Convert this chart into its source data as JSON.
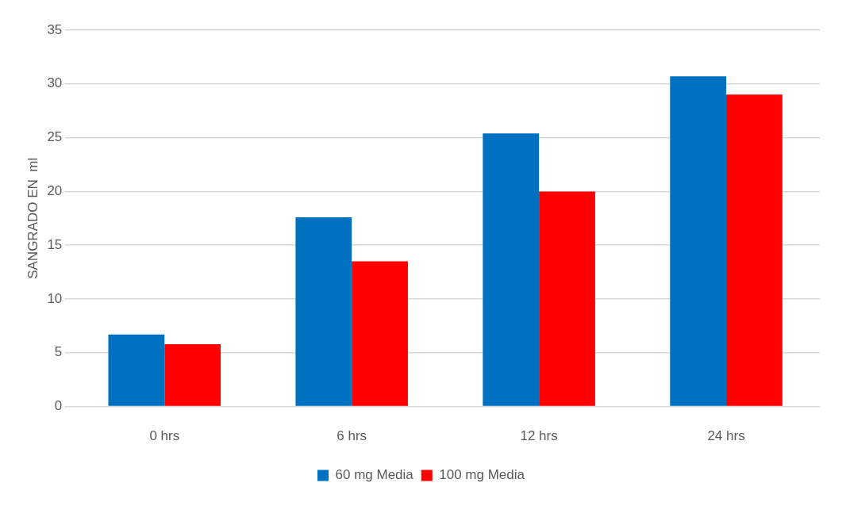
{
  "chart_data": {
    "type": "bar",
    "ylabel": "SANGRADO EN  ml",
    "categories": [
      "0 hrs",
      "6 hrs",
      "12 hrs",
      "24 hrs"
    ],
    "series": [
      {
        "name": "60 mg Media",
        "color": "#0070c0",
        "values": [
          6.7,
          17.6,
          25.4,
          30.7
        ]
      },
      {
        "name": "100 mg Media",
        "color": "#ff0000",
        "values": [
          5.8,
          13.5,
          20.0,
          29.0
        ]
      }
    ],
    "ylim": [
      0,
      35
    ],
    "yticks": [
      0,
      5,
      10,
      15,
      20,
      25,
      30,
      35
    ],
    "grid": "y",
    "legend": "bottom"
  }
}
